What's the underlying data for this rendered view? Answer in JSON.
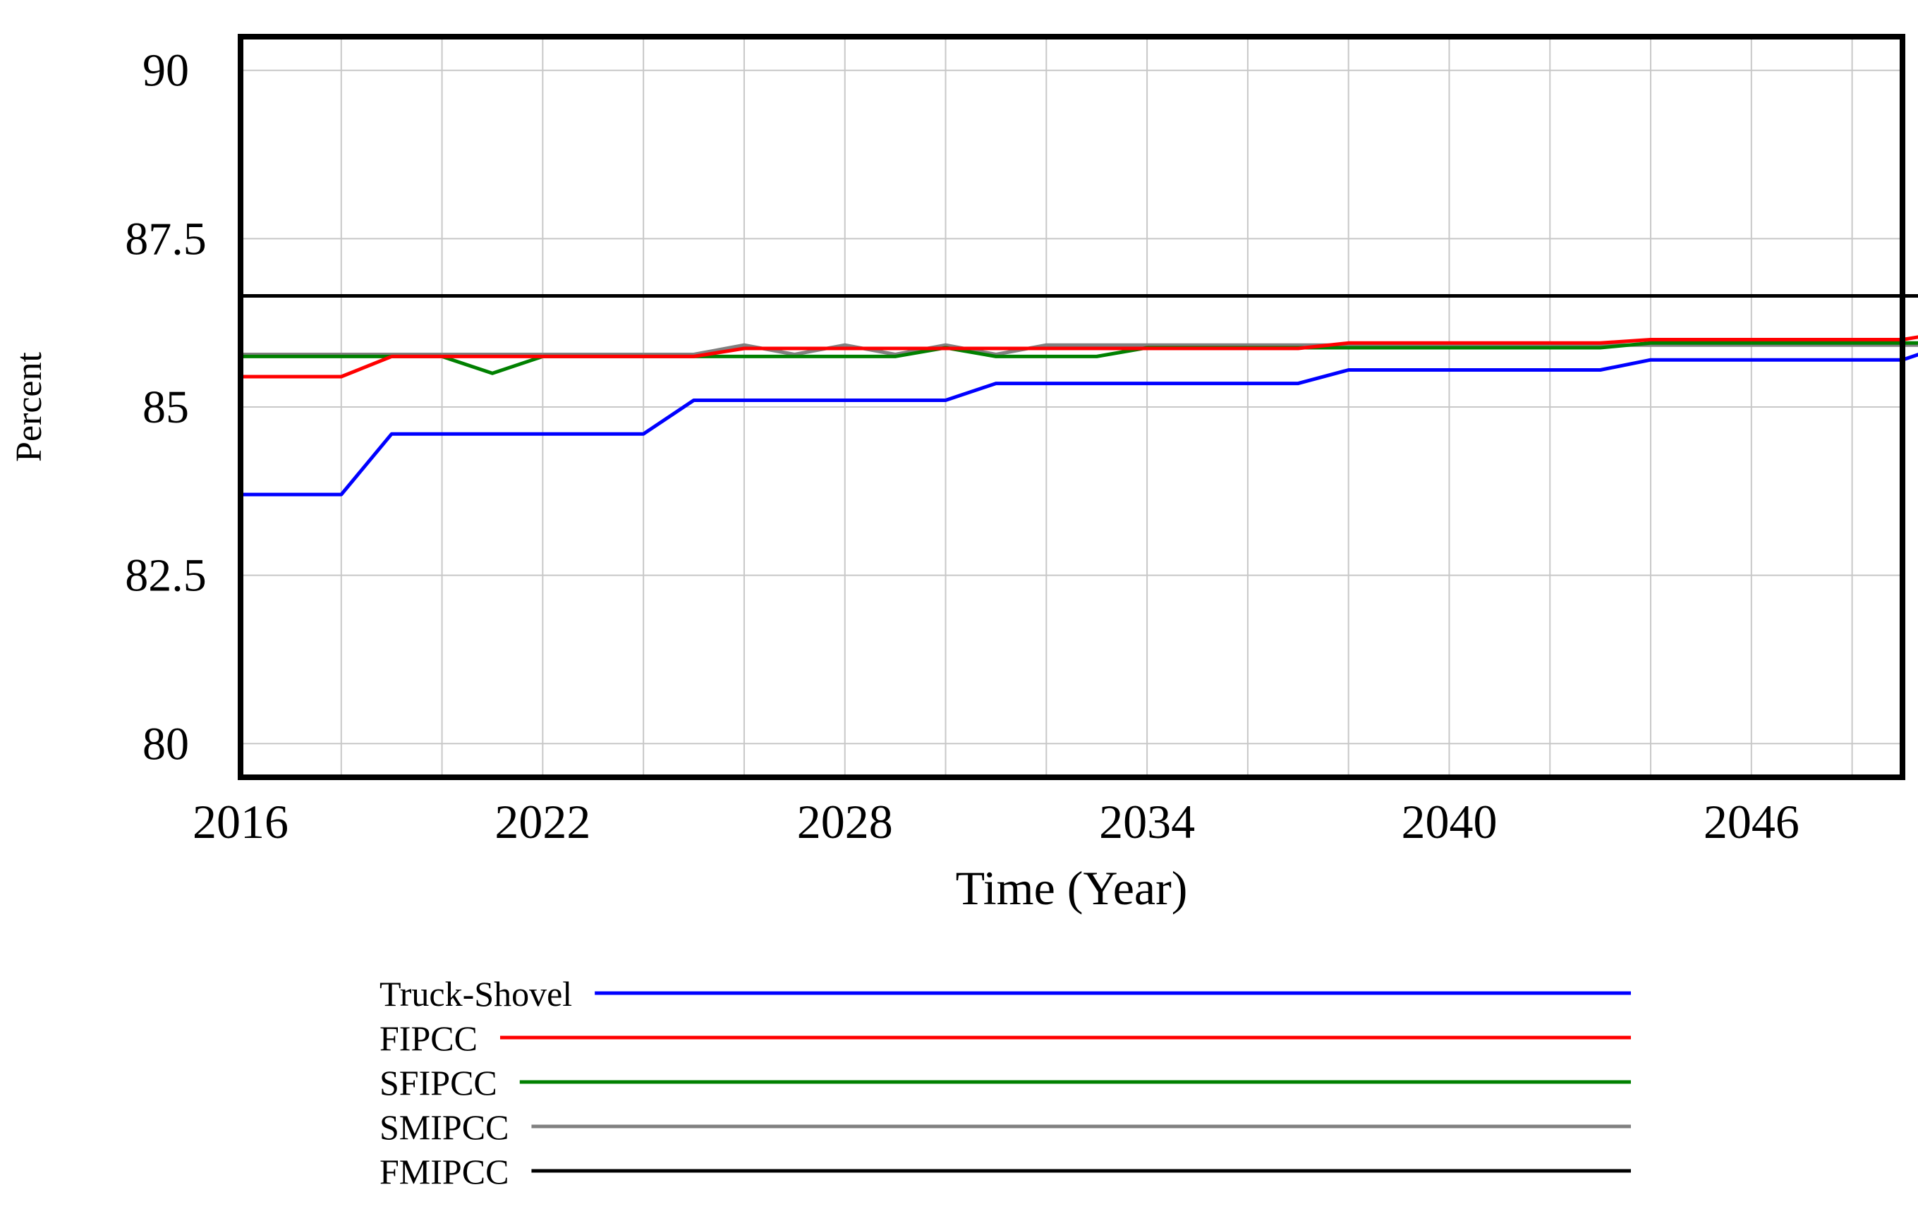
{
  "chart_data": {
    "type": "line",
    "title": "",
    "xlabel": "Time (Year)",
    "ylabel": "Percent",
    "xlim": [
      2016,
      2049
    ],
    "ylim": [
      79.5,
      90.5
    ],
    "x_ticks": [
      2016,
      2022,
      2028,
      2034,
      2040,
      2046
    ],
    "y_ticks": [
      80,
      82.5,
      85,
      87.5,
      90
    ],
    "y_tick_labels": [
      "80",
      "82.5",
      "85",
      "87.5",
      "90"
    ],
    "grid": true,
    "legend_position": "bottom",
    "series": [
      {
        "name": "Truck-Shovel",
        "color": "#0000ff",
        "points": [
          [
            2016,
            83.7
          ],
          [
            2018,
            83.7
          ],
          [
            2019,
            84.6
          ],
          [
            2024,
            84.6
          ],
          [
            2025,
            85.1
          ],
          [
            2030,
            85.1
          ],
          [
            2031,
            85.35
          ],
          [
            2037,
            85.35
          ],
          [
            2038,
            85.55
          ],
          [
            2043,
            85.55
          ],
          [
            2044,
            85.7
          ],
          [
            2049,
            85.7
          ],
          [
            2049.5,
            85.8
          ]
        ]
      },
      {
        "name": "FIPCC",
        "color": "#ff0000",
        "points": [
          [
            2016,
            85.45
          ],
          [
            2018,
            85.45
          ],
          [
            2019,
            85.75
          ],
          [
            2025,
            85.75
          ],
          [
            2026,
            85.87
          ],
          [
            2037,
            85.87
          ],
          [
            2038,
            85.95
          ],
          [
            2043,
            85.95
          ],
          [
            2044,
            86.0
          ],
          [
            2049,
            86.0
          ],
          [
            2049.5,
            86.05
          ]
        ]
      },
      {
        "name": "SFIPCC",
        "color": "#008000",
        "points": [
          [
            2016,
            85.75
          ],
          [
            2020,
            85.75
          ],
          [
            2021,
            85.5
          ],
          [
            2022,
            85.75
          ],
          [
            2029,
            85.75
          ],
          [
            2030,
            85.88
          ],
          [
            2031,
            85.75
          ],
          [
            2033,
            85.75
          ],
          [
            2034,
            85.88
          ],
          [
            2043,
            85.88
          ],
          [
            2044,
            85.95
          ],
          [
            2049.5,
            85.95
          ]
        ]
      },
      {
        "name": "SMIPCC",
        "color": "#808080",
        "points": [
          [
            2016,
            85.78
          ],
          [
            2025,
            85.78
          ],
          [
            2026,
            85.92
          ],
          [
            2027,
            85.78
          ],
          [
            2028,
            85.92
          ],
          [
            2029,
            85.78
          ],
          [
            2030,
            85.92
          ],
          [
            2031,
            85.78
          ],
          [
            2032,
            85.92
          ],
          [
            2049.5,
            85.92
          ]
        ]
      },
      {
        "name": "FMIPCC",
        "color": "#000000",
        "points": [
          [
            2016,
            86.65
          ],
          [
            2049.5,
            86.65
          ]
        ]
      }
    ]
  }
}
